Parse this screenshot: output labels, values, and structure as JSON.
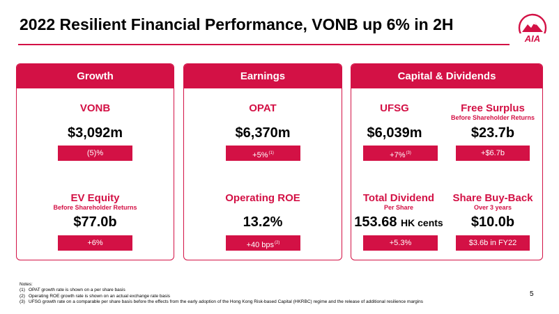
{
  "title": "2022 Resilient Financial Performance, VONB up 6% in 2H",
  "brand": {
    "logo_text": "AIA",
    "accent_color": "#d31145"
  },
  "panels": {
    "growth": {
      "header": "Growth",
      "vonb": {
        "name": "VONB",
        "value": "$3,092m",
        "badge": "(5)%"
      },
      "ev_equity": {
        "name": "EV Equity",
        "sub": "Before Shareholder Returns",
        "value": "$77.0b",
        "badge": "+6%"
      }
    },
    "earnings": {
      "header": "Earnings",
      "opat": {
        "name": "OPAT",
        "value": "$6,370m",
        "badge": "+5%",
        "badge_note": "(1)"
      },
      "roe": {
        "name": "Operating ROE",
        "value": "13.2%",
        "badge": "+40 bps",
        "badge_note": "(2)"
      }
    },
    "capital": {
      "header": "Capital & Dividends",
      "ufsg": {
        "name": "UFSG",
        "value": "$6,039m",
        "badge": "+7%",
        "badge_note": "(3)"
      },
      "free_surplus": {
        "name": "Free Surplus",
        "sub": "Before Shareholder Returns",
        "value": "$23.7b",
        "badge": "+$6.7b"
      },
      "dividend": {
        "name": "Total Dividend",
        "sub": "Per Share",
        "value": "153.68",
        "unit": "HK cents",
        "badge": "+5.3%"
      },
      "buyback": {
        "name": "Share Buy-Back",
        "sub": "Over 3 years",
        "value": "$10.0b",
        "badge": "$3.6b in FY22"
      }
    }
  },
  "notes": {
    "heading": "Notes:",
    "items": [
      {
        "num": "(1)",
        "text": "OPAT growth rate is shown on a per share basis"
      },
      {
        "num": "(2)",
        "text": "Operating ROE growth rate is shown on an actual exchange rate basis"
      },
      {
        "num": "(3)",
        "text": "UFSG growth rate on a comparable per share basis before the effects from the early adoption of the Hong Kong Risk-based Capital (HKRBC) regime and the release of additional resilience margins"
      }
    ]
  },
  "page_number": "5"
}
